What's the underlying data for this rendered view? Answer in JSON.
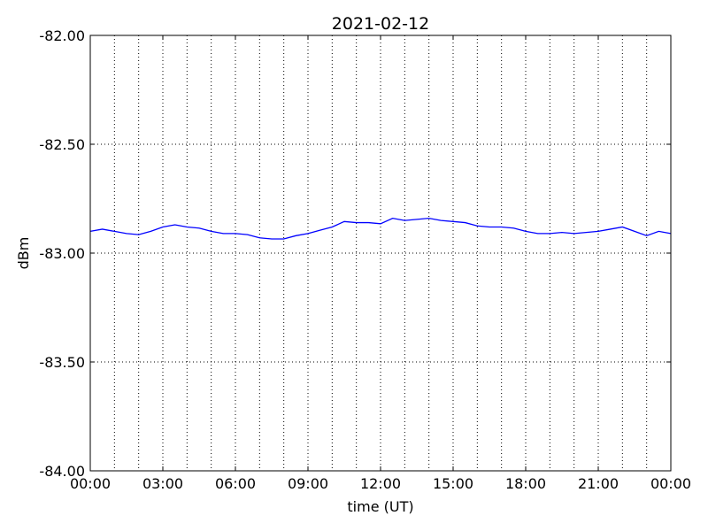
{
  "chart_data": {
    "type": "line",
    "title": "2021-02-12",
    "xlabel": "time (UT)",
    "ylabel": "dBm",
    "x": [
      0,
      0.5,
      1,
      1.5,
      2,
      2.5,
      3,
      3.5,
      4,
      4.5,
      5,
      5.5,
      6,
      6.5,
      7,
      7.5,
      8,
      8.5,
      9,
      9.5,
      10,
      10.5,
      11,
      11.5,
      12,
      12.5,
      13,
      13.5,
      14,
      14.5,
      15,
      15.5,
      16,
      16.5,
      17,
      17.5,
      18,
      18.5,
      19,
      19.5,
      20,
      20.5,
      21,
      21.5,
      22,
      22.5,
      23,
      23.5,
      24
    ],
    "series": [
      {
        "color": "#0000ff",
        "values": [
          -82.9,
          -82.89,
          -82.9,
          -82.91,
          -82.915,
          -82.9,
          -82.88,
          -82.87,
          -82.88,
          -82.885,
          -82.9,
          -82.91,
          -82.91,
          -82.915,
          -82.93,
          -82.935,
          -82.935,
          -82.92,
          -82.91,
          -82.895,
          -82.88,
          -82.855,
          -82.86,
          -82.86,
          -82.865,
          -82.84,
          -82.85,
          -82.845,
          -82.84,
          -82.85,
          -82.855,
          -82.86,
          -82.875,
          -82.88,
          -82.88,
          -82.885,
          -82.9,
          -82.91,
          -82.91,
          -82.905,
          -82.91,
          -82.905,
          -82.9,
          -82.89,
          -82.88,
          -82.9,
          -82.92,
          -82.9,
          -82.91
        ]
      }
    ],
    "xlim": [
      0,
      24
    ],
    "xticks": [
      {
        "value": 0,
        "label": "00:00"
      },
      {
        "value": 3,
        "label": "03:00"
      },
      {
        "value": 6,
        "label": "06:00"
      },
      {
        "value": 9,
        "label": "09:00"
      },
      {
        "value": 12,
        "label": "12:00"
      },
      {
        "value": 15,
        "label": "15:00"
      },
      {
        "value": 18,
        "label": "18:00"
      },
      {
        "value": 21,
        "label": "21:00"
      },
      {
        "value": 24,
        "label": "00:00"
      }
    ],
    "xminorticks": [
      1,
      2,
      4,
      5,
      7,
      8,
      10,
      11,
      13,
      14,
      16,
      17,
      19,
      20,
      22,
      23
    ],
    "ylim": [
      -84,
      -82
    ],
    "yticks": [
      {
        "value": -84,
        "label": "-84.00"
      },
      {
        "value": -83.5,
        "label": "-83.50"
      },
      {
        "value": -83,
        "label": "-83.00"
      },
      {
        "value": -82.5,
        "label": "-82.50"
      },
      {
        "value": -82,
        "label": "-82.00"
      }
    ],
    "grid": true
  }
}
